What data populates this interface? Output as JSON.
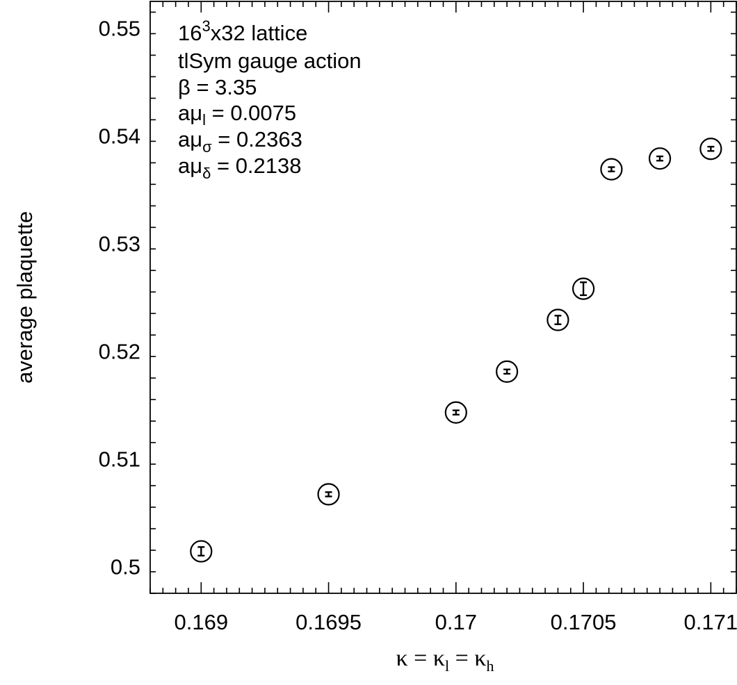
{
  "chart_data": {
    "type": "scatter",
    "xlabel": "κ = κ",
    "xlabel_sub1": "l",
    "xlabel_mid": " = κ",
    "xlabel_sub2": "h",
    "ylabel": "average plaquette",
    "xlim": [
      0.1688,
      0.1711
    ],
    "ylim": [
      0.4975,
      0.5525
    ],
    "x_ticks": [
      0.169,
      0.1695,
      0.17,
      0.1705,
      0.171
    ],
    "x_tick_labels": [
      "0.169",
      "0.1695",
      "0.17",
      "0.1705",
      "0.171"
    ],
    "y_ticks": [
      0.5,
      0.51,
      0.52,
      0.53,
      0.54,
      0.55
    ],
    "y_tick_labels": [
      "0.5",
      "0.51",
      "0.52",
      "0.53",
      "0.54",
      "0.55"
    ],
    "grid": false,
    "marker": "circle-with-errorbar",
    "points": [
      {
        "x": 0.169,
        "y": 0.5014,
        "err": 0.0004
      },
      {
        "x": 0.1695,
        "y": 0.5067,
        "err": 0.0002
      },
      {
        "x": 0.17,
        "y": 0.5143,
        "err": 0.0002
      },
      {
        "x": 0.1702,
        "y": 0.5181,
        "err": 0.0002
      },
      {
        "x": 0.1704,
        "y": 0.5229,
        "err": 0.0004
      },
      {
        "x": 0.1705,
        "y": 0.5258,
        "err": 0.0006
      },
      {
        "x": 0.17061,
        "y": 0.5369,
        "err": 0.0002
      },
      {
        "x": 0.1708,
        "y": 0.5379,
        "err": 0.0002
      },
      {
        "x": 0.171,
        "y": 0.5388,
        "err": 0.0002
      }
    ],
    "annotation": {
      "line1_base": "16",
      "line1_sup": "3",
      "line1_rest": "x32 lattice",
      "line2": "tlSym gauge action",
      "line3": "β = 3.35",
      "line4_a": "aμ",
      "line4_sub": "l",
      "line4_b": " = 0.0075",
      "line5_a": "aμ",
      "line5_sub": "σ",
      "line5_b": " = 0.2363",
      "line6_a": "aμ",
      "line6_sub": "δ",
      "line6_b": " = 0.2138"
    }
  }
}
